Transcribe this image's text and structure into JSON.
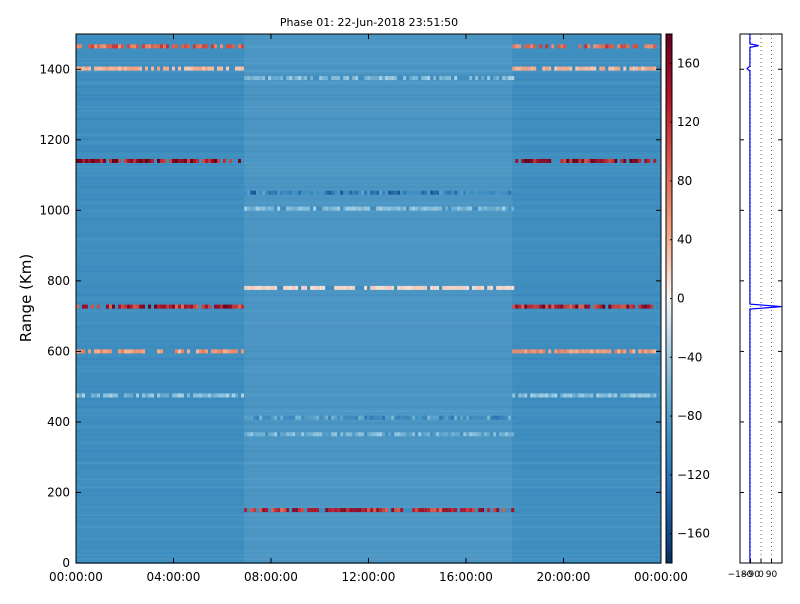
{
  "chart_data": [
    {
      "type": "heatmap",
      "title": "Phase 01: 22-Jun-2018 23:51:50",
      "xlabel": "",
      "ylabel": "Range (Km)",
      "x_tick_labels": [
        "00:00:00",
        "04:00:00",
        "08:00:00",
        "12:00:00",
        "16:00:00",
        "20:00:00",
        "00:00:00"
      ],
      "xlim_hours": [
        0,
        24
      ],
      "y_ticks": [
        0,
        200,
        400,
        600,
        800,
        1000,
        1200,
        1400
      ],
      "ylim": [
        0,
        1500
      ],
      "colorbar": {
        "ticks": [
          160,
          120,
          80,
          40,
          0,
          -40,
          -80,
          -120,
          -160
        ],
        "tick_labels": [
          "160",
          "120",
          "80",
          "40",
          "0",
          "−40",
          "−80",
          "−120",
          "−160"
        ],
        "range": [
          -180,
          180
        ],
        "colormap": "RdBu_r",
        "low_color": "#053061",
        "mid_color": "#f7f7f7",
        "high_color": "#67001f"
      },
      "background_value": -95,
      "segments_hours": [
        [
          0,
          6.9
        ],
        [
          6.9,
          17.9
        ],
        [
          17.9,
          23.8
        ]
      ],
      "bands": [
        {
          "range_km": 1465,
          "segments": [
            0,
            2
          ],
          "value": 100
        },
        {
          "range_km": 1402,
          "segments": [
            0,
            2
          ],
          "value": 40
        },
        {
          "range_km": 1375,
          "segments": [
            1
          ],
          "value": -60
        },
        {
          "range_km": 1140,
          "segments": [
            0,
            2
          ],
          "value": 170
        },
        {
          "range_km": 1050,
          "segments": [
            1
          ],
          "value": -130
        },
        {
          "range_km": 1005,
          "segments": [
            1
          ],
          "value": -60
        },
        {
          "range_km": 780,
          "segments": [
            1
          ],
          "value": 20
        },
        {
          "range_km": 727,
          "segments": [
            0,
            2
          ],
          "value": 150
        },
        {
          "range_km": 600,
          "segments": [
            0,
            2
          ],
          "value": 60
        },
        {
          "range_km": 475,
          "segments": [
            0,
            2
          ],
          "value": -60
        },
        {
          "range_km": 412,
          "segments": [
            1
          ],
          "value": -100
        },
        {
          "range_km": 365,
          "segments": [
            1
          ],
          "value": -70
        },
        {
          "range_km": 150,
          "segments": [
            1
          ],
          "value": 140
        }
      ]
    },
    {
      "type": "line",
      "xlabel": "",
      "ylabel": "",
      "x_tick_labels": [
        "−180",
        "−90",
        "0",
        "90"
      ],
      "xlim": [
        -180,
        180
      ],
      "ylim": [
        0,
        1500
      ],
      "series_color": "#0000ff",
      "profile": [
        {
          "y": 0,
          "x": -95
        },
        {
          "y": 720,
          "x": -95
        },
        {
          "y": 727,
          "x": 175
        },
        {
          "y": 734,
          "x": -95
        },
        {
          "y": 1395,
          "x": -95
        },
        {
          "y": 1402,
          "x": -120
        },
        {
          "y": 1409,
          "x": -95
        },
        {
          "y": 1462,
          "x": -95
        },
        {
          "y": 1467,
          "x": -20
        },
        {
          "y": 1472,
          "x": -95
        },
        {
          "y": 1500,
          "x": -95
        }
      ]
    }
  ]
}
